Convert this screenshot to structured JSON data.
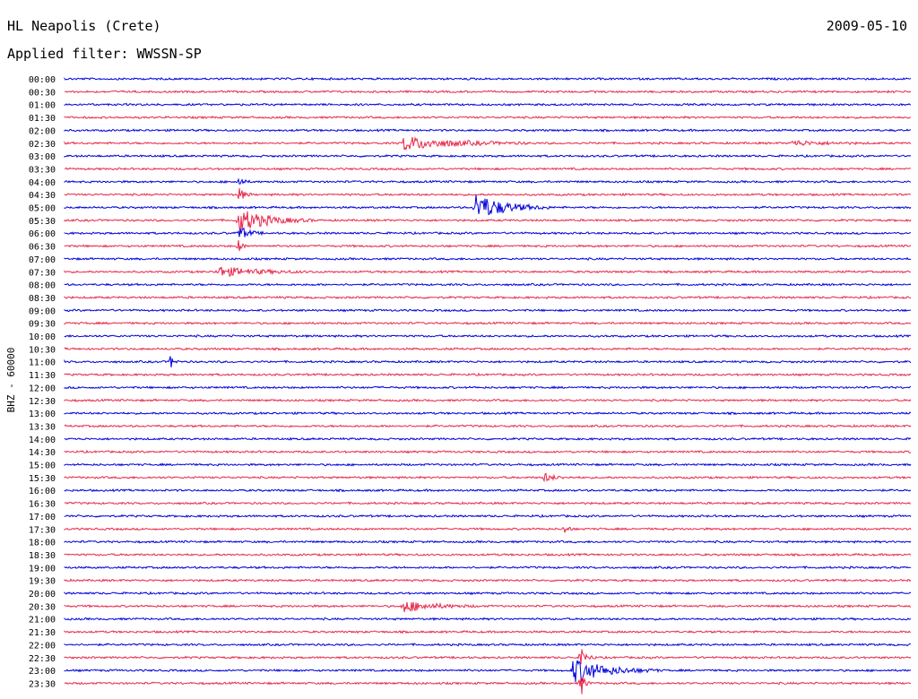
{
  "header": {
    "station": "HL Neapolis (Crete)",
    "date": "2009-05-10",
    "filter": "Applied filter: WWSSN-SP"
  },
  "chart_data": {
    "type": "line",
    "title": "HL Neapolis (Crete)",
    "ylabel": "BHZ - 60000",
    "categories": [
      "00:00",
      "00:30",
      "01:00",
      "01:30",
      "02:00",
      "02:30",
      "03:00",
      "03:30",
      "04:00",
      "04:30",
      "05:00",
      "05:30",
      "06:00",
      "06:30",
      "07:00",
      "07:30",
      "08:00",
      "08:30",
      "09:00",
      "09:30",
      "10:00",
      "10:30",
      "11:00",
      "11:30",
      "12:00",
      "12:30",
      "13:00",
      "13:30",
      "14:00",
      "14:30",
      "15:00",
      "15:30",
      "16:00",
      "16:30",
      "17:00",
      "17:30",
      "18:00",
      "18:30",
      "19:00",
      "19:30",
      "20:00",
      "20:30",
      "21:00",
      "21:30",
      "22:00",
      "22:30",
      "23:00",
      "23:30"
    ],
    "colors": [
      "#0000dd",
      "#e8284a"
    ],
    "events": [
      {
        "row": 5,
        "at": 0.4,
        "width": 0.05,
        "amp": 8
      },
      {
        "row": 5,
        "at": 0.86,
        "width": 0.03,
        "amp": 3
      },
      {
        "row": 8,
        "at": 0.205,
        "width": 0.005,
        "amp": 6
      },
      {
        "row": 9,
        "at": 0.205,
        "width": 0.006,
        "amp": 9
      },
      {
        "row": 10,
        "at": 0.485,
        "width": 0.03,
        "amp": 16
      },
      {
        "row": 11,
        "at": 0.205,
        "width": 0.03,
        "amp": 14
      },
      {
        "row": 12,
        "at": 0.205,
        "width": 0.01,
        "amp": 9
      },
      {
        "row": 13,
        "at": 0.205,
        "width": 0.004,
        "amp": 8
      },
      {
        "row": 15,
        "at": 0.18,
        "width": 0.04,
        "amp": 6
      },
      {
        "row": 22,
        "at": 0.125,
        "width": 0.004,
        "amp": 8
      },
      {
        "row": 31,
        "at": 0.565,
        "width": 0.01,
        "amp": 6
      },
      {
        "row": 35,
        "at": 0.59,
        "width": 0.004,
        "amp": 7
      },
      {
        "row": 41,
        "at": 0.4,
        "width": 0.03,
        "amp": 7
      },
      {
        "row": 46,
        "at": 0.6,
        "width": 0.035,
        "amp": 14
      },
      {
        "row": 45,
        "at": 0.61,
        "width": 0.006,
        "amp": 12
      },
      {
        "row": 47,
        "at": 0.61,
        "width": 0.004,
        "amp": 16
      }
    ]
  }
}
